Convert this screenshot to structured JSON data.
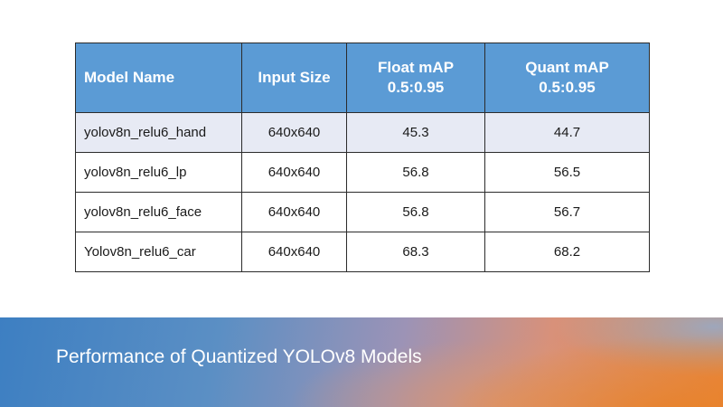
{
  "table": {
    "headers": [
      "Model Name",
      "Input Size",
      "Float mAP\n0.5:0.95",
      "Quant mAP\n0.5:0.95"
    ],
    "rows": [
      [
        "yolov8n_relu6_hand",
        "640x640",
        "45.3",
        "44.7"
      ],
      [
        "yolov8n_relu6_lp",
        "640x640",
        "56.8",
        "56.5"
      ],
      [
        "yolov8n_relu6_face",
        "640x640",
        "56.8",
        "56.7"
      ],
      [
        "Yolov8n_relu6_car",
        "640x640",
        "68.3",
        "68.2"
      ]
    ]
  },
  "footer": {
    "title": "Performance of Quantized YOLOv8 Models"
  },
  "colors": {
    "header_bg": "#5b9bd5",
    "band_bg": "#e7eaf4"
  }
}
